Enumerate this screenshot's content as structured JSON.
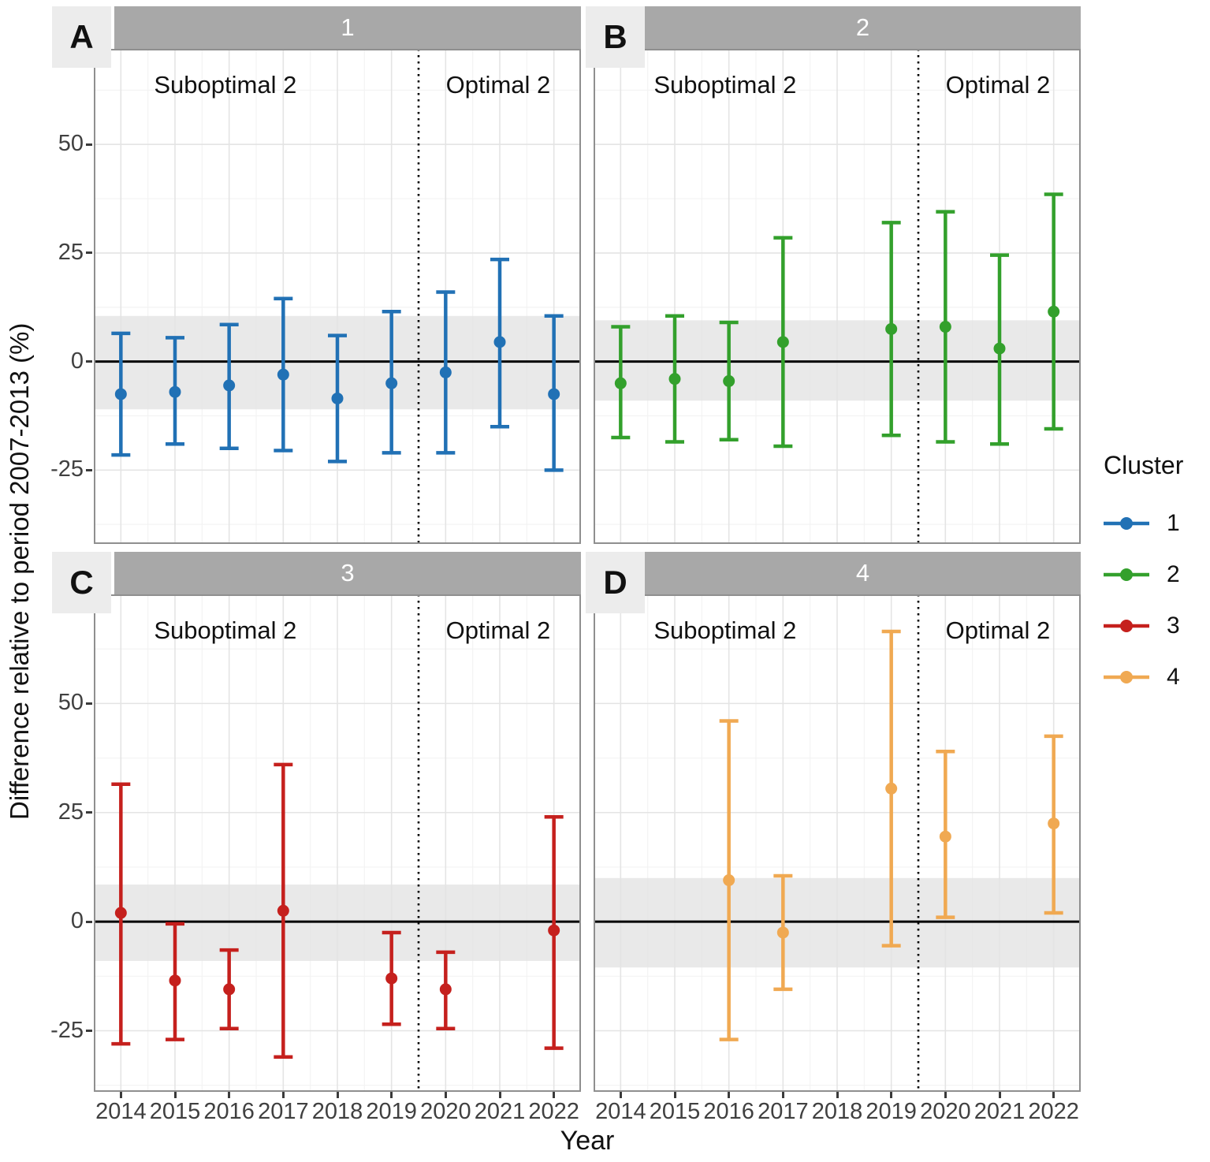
{
  "figure": {
    "y_axis_title": "Difference relative to period 2007-2013 (%)",
    "x_axis_title": "Year",
    "legend": {
      "title": "Cluster",
      "entries": [
        {
          "label": "1",
          "color": "#2171b5"
        },
        {
          "label": "2",
          "color": "#33a02c"
        },
        {
          "label": "3",
          "color": "#c5201d"
        },
        {
          "label": "4",
          "color": "#f0a952"
        }
      ]
    }
  },
  "chart_data": {
    "type": "errorbar",
    "x": [
      2014,
      2015,
      2016,
      2017,
      2018,
      2019,
      2020,
      2021,
      2022
    ],
    "y_ticks": [
      50,
      25,
      0,
      -25
    ],
    "grid": "on",
    "legend_position": "right",
    "divider_between": [
      2019,
      2020
    ],
    "panels": [
      {
        "tag": "A",
        "strip": "1",
        "color": "#2171b5",
        "left_label": "Suboptimal 2",
        "right_label": "Optimal 2",
        "ylim": [
          -42,
          72
        ],
        "band": [
          -11,
          10.5
        ],
        "points": [
          {
            "year": 2014,
            "est": -7.5,
            "lo": -21.5,
            "hi": 6.5
          },
          {
            "year": 2015,
            "est": -7,
            "lo": -19,
            "hi": 5.5
          },
          {
            "year": 2016,
            "est": -5.5,
            "lo": -20,
            "hi": 8.5
          },
          {
            "year": 2017,
            "est": -3,
            "lo": -20.5,
            "hi": 14.5
          },
          {
            "year": 2018,
            "est": -8.5,
            "lo": -23,
            "hi": 6
          },
          {
            "year": 2019,
            "est": -5,
            "lo": -21,
            "hi": 11.5
          },
          {
            "year": 2020,
            "est": -2.5,
            "lo": -21,
            "hi": 16
          },
          {
            "year": 2021,
            "est": 4.5,
            "lo": -15,
            "hi": 23.5
          },
          {
            "year": 2022,
            "est": -7.5,
            "lo": -25,
            "hi": 10.5
          }
        ]
      },
      {
        "tag": "B",
        "strip": "2",
        "color": "#33a02c",
        "left_label": "Suboptimal 2",
        "right_label": "Optimal 2",
        "ylim": [
          -42,
          72
        ],
        "band": [
          -9,
          9.5
        ],
        "points": [
          {
            "year": 2014,
            "est": -5,
            "lo": -17.5,
            "hi": 8
          },
          {
            "year": 2015,
            "est": -4,
            "lo": -18.5,
            "hi": 10.5
          },
          {
            "year": 2016,
            "est": -4.5,
            "lo": -18,
            "hi": 9
          },
          {
            "year": 2017,
            "est": 4.5,
            "lo": -19.5,
            "hi": 28.5
          },
          {
            "year": 2019,
            "est": 7.5,
            "lo": -17,
            "hi": 32
          },
          {
            "year": 2020,
            "est": 8,
            "lo": -18.5,
            "hi": 34.5
          },
          {
            "year": 2021,
            "est": 3,
            "lo": -19,
            "hi": 24.5
          },
          {
            "year": 2022,
            "est": 11.5,
            "lo": -15.5,
            "hi": 38.5
          }
        ]
      },
      {
        "tag": "C",
        "strip": "3",
        "color": "#c5201d",
        "left_label": "Suboptimal 2",
        "right_label": "Optimal 2",
        "ylim": [
          -39,
          75
        ],
        "band": [
          -9,
          8.5
        ],
        "points": [
          {
            "year": 2014,
            "est": 2,
            "lo": -28,
            "hi": 31.5
          },
          {
            "year": 2015,
            "est": -13.5,
            "lo": -27,
            "hi": -0.5
          },
          {
            "year": 2016,
            "est": -15.5,
            "lo": -24.5,
            "hi": -6.5
          },
          {
            "year": 2017,
            "est": 2.5,
            "lo": -31,
            "hi": 36
          },
          {
            "year": 2019,
            "est": -13,
            "lo": -23.5,
            "hi": -2.5
          },
          {
            "year": 2020,
            "est": -15.5,
            "lo": -24.5,
            "hi": -7
          },
          {
            "year": 2022,
            "est": -2,
            "lo": -29,
            "hi": 24
          }
        ]
      },
      {
        "tag": "D",
        "strip": "4",
        "color": "#f0a952",
        "left_label": "Suboptimal 2",
        "right_label": "Optimal 2",
        "ylim": [
          -39,
          75
        ],
        "band": [
          -10.5,
          10
        ],
        "points": [
          {
            "year": 2016,
            "est": 9.5,
            "lo": -27,
            "hi": 46
          },
          {
            "year": 2017,
            "est": -2.5,
            "lo": -15.5,
            "hi": 10.5
          },
          {
            "year": 2019,
            "est": 30.5,
            "lo": -5.5,
            "hi": 66.5
          },
          {
            "year": 2020,
            "est": 19.5,
            "lo": 1,
            "hi": 39
          },
          {
            "year": 2022,
            "est": 22.5,
            "lo": 2,
            "hi": 42.5
          }
        ]
      }
    ]
  }
}
